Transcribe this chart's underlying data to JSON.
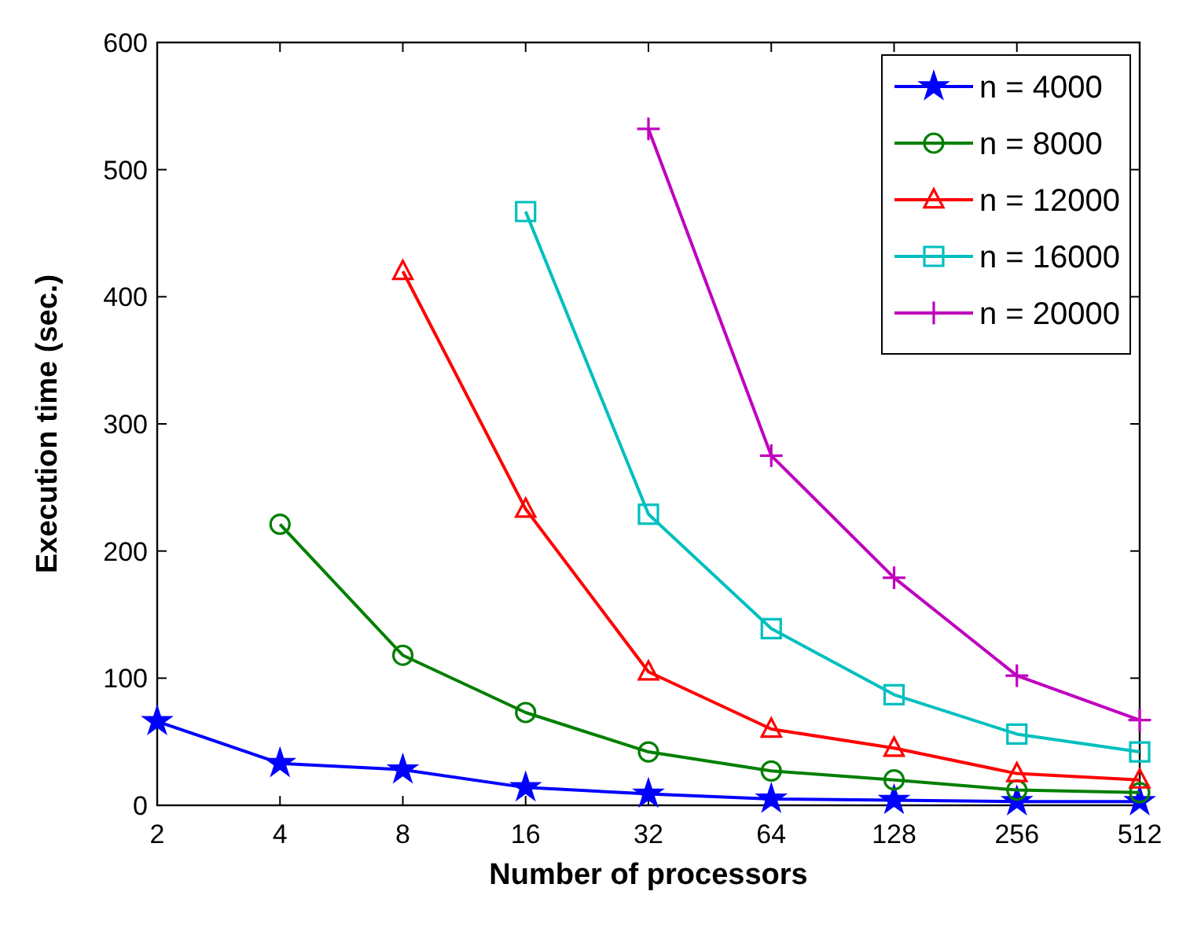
{
  "chart_data": {
    "type": "line",
    "xlabel": "Number of processors",
    "ylabel": "Execution time (sec.)",
    "log": "x",
    "xlim": [
      2,
      512
    ],
    "xticks": [
      2,
      4,
      8,
      16,
      32,
      64,
      128,
      256,
      512
    ],
    "ylim": [
      0,
      600
    ],
    "yticks": [
      0,
      100,
      200,
      300,
      400,
      500,
      600
    ],
    "grid": false,
    "legend": "top right",
    "series": [
      {
        "name": "n = 4000",
        "color": "#0000ff",
        "marker": "star",
        "x": [
          2,
          4,
          8,
          16,
          32,
          64,
          128,
          256,
          512
        ],
        "values": [
          66,
          33,
          28,
          14,
          9,
          5,
          4,
          3,
          3
        ]
      },
      {
        "name": "n = 8000",
        "color": "#007f00",
        "marker": "circle",
        "x": [
          4,
          8,
          16,
          32,
          64,
          128,
          256,
          512
        ],
        "values": [
          221,
          118,
          73,
          42,
          27,
          20,
          12,
          10
        ]
      },
      {
        "name": "n = 12000",
        "color": "#ff0000",
        "marker": "triangle",
        "x": [
          8,
          16,
          32,
          64,
          128,
          256,
          512
        ],
        "values": [
          420,
          233,
          105,
          60,
          45,
          25,
          20
        ]
      },
      {
        "name": "n = 16000",
        "color": "#00bfbf",
        "marker": "square",
        "x": [
          16,
          32,
          64,
          128,
          256,
          512
        ],
        "values": [
          467,
          229,
          139,
          87,
          56,
          42
        ]
      },
      {
        "name": "n = 20000",
        "color": "#bf00bf",
        "marker": "cross",
        "x": [
          32,
          64,
          128,
          256,
          512
        ],
        "values": [
          532,
          275,
          179,
          102,
          67
        ]
      }
    ]
  }
}
